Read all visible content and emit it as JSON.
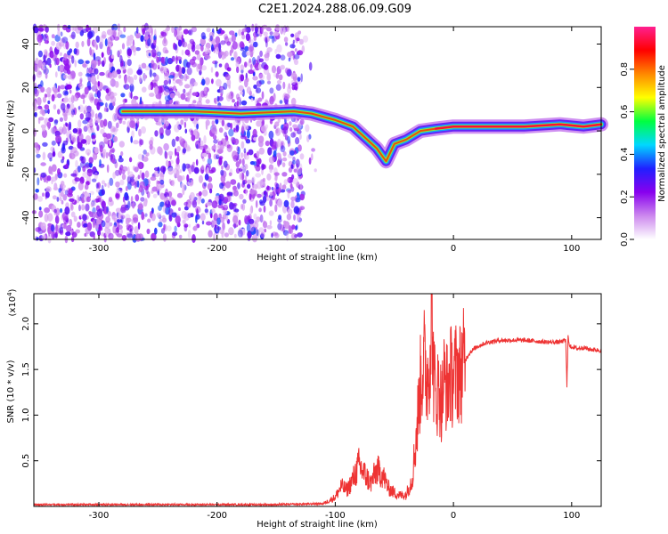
{
  "title": "C2E1.2024.288.06.09.G09",
  "chart_data": [
    {
      "type": "heatmap",
      "xlabel": "Height of straight line (km)",
      "ylabel": "Frequency (Hz)",
      "xlim": [
        -355,
        125
      ],
      "ylim": [
        -50,
        48
      ],
      "x_ticks": [
        -300,
        -200,
        -100,
        0,
        100
      ],
      "y_ticks": [
        -40,
        -20,
        0,
        20,
        40
      ],
      "grid": false,
      "colorbar": {
        "label": "Normalized spectral amplitude",
        "range": [
          0,
          1
        ],
        "ticks": [
          0.0,
          0.2,
          0.4,
          0.6,
          0.8
        ],
        "colors": [
          "#ffffff",
          "#cc88ee",
          "#8800ee",
          "#2020ff",
          "#00d8ff",
          "#00ff40",
          "#ffff00",
          "#ff8800",
          "#ff0000",
          "#ff2090"
        ]
      },
      "regions": [
        {
          "name_id": "noise",
          "x_range": [
            -355,
            -128
          ],
          "y_range": [
            -50,
            48
          ],
          "amplitude": [
            0.0,
            0.3
          ]
        },
        {
          "name_id": "dispersion-trace",
          "points": [
            [
              -280,
              9
            ],
            [
              -220,
              9
            ],
            [
              -180,
              8
            ],
            [
              -135,
              9
            ],
            [
              -120,
              8
            ],
            [
              -100,
              5
            ],
            [
              -85,
              2
            ],
            [
              -75,
              -3
            ],
            [
              -65,
              -8
            ],
            [
              -57,
              -14
            ],
            [
              -50,
              -6
            ],
            [
              -40,
              -4
            ],
            [
              -28,
              0
            ],
            [
              -15,
              1
            ],
            [
              0,
              2
            ],
            [
              30,
              2
            ],
            [
              60,
              2
            ],
            [
              90,
              3
            ],
            [
              110,
              2
            ],
            [
              125,
              3
            ]
          ],
          "amplitude_peak": 1.0
        }
      ]
    },
    {
      "type": "line",
      "xlabel": "Height of straight line (km)",
      "ylabel": "SNR (10 * v/v)",
      "y_multiplier": "(x10^4)",
      "xlim": [
        -355,
        125
      ],
      "ylim": [
        0,
        2.33
      ],
      "x_ticks": [
        -300,
        -200,
        -100,
        0,
        100
      ],
      "y_ticks": [
        0.5,
        1.0,
        1.5,
        2.0
      ],
      "grid": false,
      "line_color": "#ee3333",
      "x": [
        -355,
        -150,
        -110,
        -100,
        -95,
        -90,
        -85,
        -80,
        -75,
        -70,
        -65,
        -60,
        -55,
        -50,
        -45,
        -40,
        -35,
        -32,
        -30,
        -28,
        -25,
        -22,
        -20,
        -18,
        -17,
        -15,
        -12,
        -10,
        -8,
        -5,
        -3,
        0,
        3,
        5,
        8,
        10,
        12,
        15,
        20,
        25,
        30,
        40,
        50,
        60,
        70,
        80,
        90,
        95,
        96,
        97,
        98,
        100,
        105,
        110,
        115,
        125
      ],
      "y": [
        0.02,
        0.02,
        0.03,
        0.1,
        0.22,
        0.18,
        0.3,
        0.45,
        0.35,
        0.25,
        0.4,
        0.35,
        0.2,
        0.15,
        0.12,
        0.13,
        0.3,
        0.7,
        1.0,
        1.35,
        1.6,
        1.4,
        1.7,
        2.25,
        1.5,
        1.2,
        1.3,
        1.1,
        1.4,
        1.3,
        1.45,
        1.4,
        1.5,
        1.45,
        1.55,
        1.6,
        1.65,
        1.7,
        1.75,
        1.78,
        1.8,
        1.82,
        1.82,
        1.82,
        1.81,
        1.8,
        1.8,
        1.82,
        1.3,
        1.9,
        1.75,
        1.75,
        1.73,
        1.74,
        1.72,
        1.71
      ]
    }
  ]
}
